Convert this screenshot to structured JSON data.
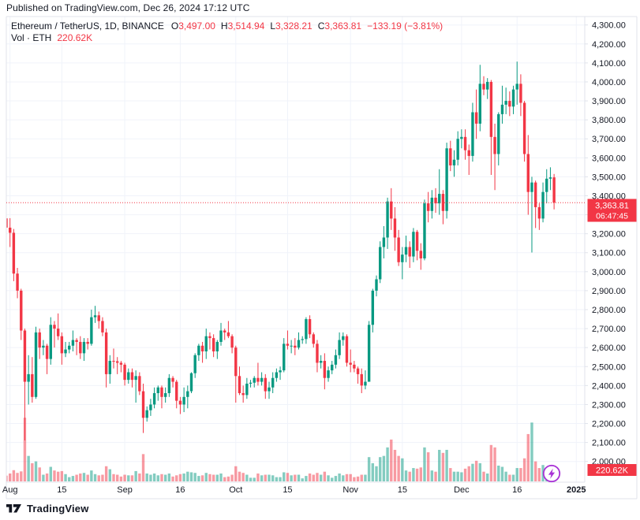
{
  "published_bar": {
    "text": "Published on TradingView.com, Dec 26, 2024 17:12 UTC"
  },
  "legend": {
    "title": "Ethereum / TetherUS, 1D, BINANCE",
    "ohlc": [
      {
        "label": "O",
        "value": "3,497.00"
      },
      {
        "label": "H",
        "value": "3,514.94"
      },
      {
        "label": "L",
        "value": "3,328.21"
      },
      {
        "label": "C",
        "value": "3,363.81"
      }
    ],
    "change": "−133.19 (−3.81%)",
    "volume_label": "Vol · ETH",
    "volume_value": "220.62K"
  },
  "price_axis": {
    "labels": [
      "4,300.00",
      "4,200.00",
      "4,100.00",
      "4,000.00",
      "3,900.00",
      "3,800.00",
      "3,700.00",
      "3,600.00",
      "3,500.00",
      "3,400.00",
      "3,300.00",
      "3,200.00",
      "3,100.00",
      "3,000.00",
      "2,900.00",
      "2,800.00",
      "2,700.00",
      "2,600.00",
      "2,500.00",
      "2,400.00",
      "2,300.00",
      "2,200.00",
      "2,100.00",
      "2,000.00"
    ]
  },
  "time_axis": {
    "labels": [
      {
        "text": "Aug",
        "index": 1,
        "bold": false
      },
      {
        "text": "15",
        "index": 15,
        "bold": false
      },
      {
        "text": "Sep",
        "index": 32,
        "bold": false
      },
      {
        "text": "16",
        "index": 47,
        "bold": false
      },
      {
        "text": "Oct",
        "index": 62,
        "bold": false
      },
      {
        "text": "15",
        "index": 76,
        "bold": false
      },
      {
        "text": "Nov",
        "index": 93,
        "bold": false
      },
      {
        "text": "15",
        "index": 107,
        "bold": false
      },
      {
        "text": "Dec",
        "index": 123,
        "bold": false
      },
      {
        "text": "16",
        "index": 138,
        "bold": false
      },
      {
        "text": "2025",
        "index": 154,
        "bold": true
      }
    ]
  },
  "price_label_badge": {
    "price": "3,363.81",
    "countdown": "06:47:45"
  },
  "volume_badge": {
    "value": "220.62K"
  },
  "footer": {
    "logo_text": "TradingView"
  },
  "colors": {
    "up": "#089981",
    "down": "#f23645",
    "vol_up": "rgba(8,153,129,0.5)",
    "vol_down": "rgba(242,54,69,0.5)",
    "grid": "#f0f3fa",
    "border": "#e0e3eb",
    "text": "#131722",
    "badge_bg": "#f23645",
    "badge_text": "#ffffff",
    "flash": "#a832d6"
  },
  "chart_data": {
    "type": "candlestick",
    "title": "Ethereum / TetherUS, 1D, BINANCE",
    "interval": "1D",
    "first_candle_date": "2024-07-31",
    "last_candle_date": "2024-12-26",
    "ylim": [
      2000,
      4300
    ],
    "grid": true,
    "current_price": 3363.81,
    "current_volume_k": 220.62,
    "candle_format": [
      "open",
      "high",
      "low",
      "close",
      "volume_thousand_eth"
    ],
    "candles": [
      [
        3281,
        3360,
        3200,
        3232,
        95
      ],
      [
        3232,
        3282,
        3130,
        3205,
        130
      ],
      [
        3205,
        3225,
        2950,
        2990,
        185
      ],
      [
        2990,
        3020,
        2860,
        2900,
        140
      ],
      [
        2900,
        2910,
        2640,
        2690,
        165
      ],
      [
        2690,
        2700,
        2111,
        2420,
        1050
      ],
      [
        2420,
        2560,
        2300,
        2460,
        420
      ],
      [
        2460,
        2550,
        2310,
        2340,
        300
      ],
      [
        2340,
        2710,
        2330,
        2680,
        330
      ],
      [
        2680,
        2700,
        2540,
        2600,
        230
      ],
      [
        2600,
        2640,
        2560,
        2610,
        110
      ],
      [
        2610,
        2620,
        2460,
        2540,
        130
      ],
      [
        2540,
        2760,
        2510,
        2720,
        240
      ],
      [
        2720,
        2740,
        2600,
        2700,
        180
      ],
      [
        2700,
        2780,
        2640,
        2660,
        160
      ],
      [
        2660,
        2680,
        2510,
        2570,
        170
      ],
      [
        2570,
        2630,
        2550,
        2590,
        120
      ],
      [
        2590,
        2630,
        2570,
        2610,
        70
      ],
      [
        2610,
        2690,
        2580,
        2640,
        90
      ],
      [
        2640,
        2650,
        2560,
        2630,
        110
      ],
      [
        2630,
        2660,
        2540,
        2570,
        130
      ],
      [
        2570,
        2650,
        2530,
        2630,
        140
      ],
      [
        2630,
        2650,
        2590,
        2620,
        110
      ],
      [
        2620,
        2800,
        2610,
        2760,
        180
      ],
      [
        2760,
        2820,
        2730,
        2770,
        120
      ],
      [
        2770,
        2790,
        2700,
        2740,
        100
      ],
      [
        2740,
        2760,
        2660,
        2680,
        110
      ],
      [
        2680,
        2700,
        2390,
        2460,
        250
      ],
      [
        2460,
        2560,
        2410,
        2530,
        200
      ],
      [
        2530,
        2595,
        2490,
        2528,
        120
      ],
      [
        2528,
        2550,
        2460,
        2520,
        110
      ],
      [
        2520,
        2530,
        2470,
        2510,
        80
      ],
      [
        2510,
        2520,
        2400,
        2430,
        110
      ],
      [
        2430,
        2490,
        2410,
        2470,
        100
      ],
      [
        2470,
        2490,
        2390,
        2430,
        100
      ],
      [
        2430,
        2480,
        2310,
        2450,
        170
      ],
      [
        2450,
        2470,
        2350,
        2370,
        130
      ],
      [
        2370,
        2410,
        2150,
        2230,
        450
      ],
      [
        2230,
        2290,
        2210,
        2270,
        130
      ],
      [
        2270,
        2330,
        2240,
        2300,
        110
      ],
      [
        2300,
        2390,
        2280,
        2360,
        130
      ],
      [
        2360,
        2400,
        2320,
        2390,
        100
      ],
      [
        2390,
        2400,
        2280,
        2340,
        120
      ],
      [
        2340,
        2390,
        2310,
        2360,
        110
      ],
      [
        2360,
        2460,
        2340,
        2440,
        130
      ],
      [
        2440,
        2450,
        2390,
        2420,
        80
      ],
      [
        2420,
        2430,
        2280,
        2320,
        100
      ],
      [
        2320,
        2340,
        2250,
        2300,
        120
      ],
      [
        2300,
        2390,
        2260,
        2340,
        130
      ],
      [
        2340,
        2400,
        2280,
        2370,
        160
      ],
      [
        2370,
        2470,
        2360,
        2465,
        150
      ],
      [
        2465,
        2570,
        2440,
        2560,
        140
      ],
      [
        2560,
        2620,
        2530,
        2610,
        90
      ],
      [
        2610,
        2630,
        2520,
        2580,
        100
      ],
      [
        2580,
        2700,
        2540,
        2660,
        140
      ],
      [
        2660,
        2680,
        2590,
        2650,
        120
      ],
      [
        2650,
        2670,
        2550,
        2580,
        110
      ],
      [
        2580,
        2640,
        2540,
        2630,
        110
      ],
      [
        2630,
        2730,
        2610,
        2690,
        130
      ],
      [
        2690,
        2700,
        2640,
        2680,
        70
      ],
      [
        2680,
        2740,
        2650,
        2660,
        80
      ],
      [
        2660,
        2670,
        2570,
        2600,
        110
      ],
      [
        2600,
        2610,
        2310,
        2450,
        250
      ],
      [
        2450,
        2500,
        2350,
        2360,
        160
      ],
      [
        2360,
        2400,
        2310,
        2350,
        140
      ],
      [
        2350,
        2440,
        2330,
        2410,
        110
      ],
      [
        2410,
        2430,
        2390,
        2415,
        60
      ],
      [
        2415,
        2450,
        2390,
        2440,
        60
      ],
      [
        2440,
        2520,
        2400,
        2420,
        130
      ],
      [
        2420,
        2470,
        2400,
        2440,
        100
      ],
      [
        2440,
        2460,
        2330,
        2370,
        110
      ],
      [
        2370,
        2420,
        2330,
        2390,
        110
      ],
      [
        2390,
        2470,
        2360,
        2440,
        100
      ],
      [
        2440,
        2490,
        2420,
        2470,
        70
      ],
      [
        2470,
        2500,
        2430,
        2480,
        70
      ],
      [
        2480,
        2650,
        2470,
        2620,
        150
      ],
      [
        2620,
        2690,
        2590,
        2610,
        140
      ],
      [
        2610,
        2640,
        2570,
        2610,
        100
      ],
      [
        2610,
        2650,
        2560,
        2600,
        110
      ],
      [
        2600,
        2680,
        2590,
        2640,
        110
      ],
      [
        2640,
        2660,
        2620,
        2645,
        50
      ],
      [
        2645,
        2760,
        2620,
        2750,
        90
      ],
      [
        2750,
        2770,
        2650,
        2670,
        130
      ],
      [
        2670,
        2680,
        2600,
        2620,
        110
      ],
      [
        2620,
        2640,
        2470,
        2520,
        140
      ],
      [
        2520,
        2560,
        2490,
        2530,
        110
      ],
      [
        2530,
        2570,
        2380,
        2440,
        160
      ],
      [
        2440,
        2500,
        2420,
        2480,
        100
      ],
      [
        2480,
        2530,
        2460,
        2510,
        60
      ],
      [
        2510,
        2590,
        2490,
        2560,
        90
      ],
      [
        2560,
        2680,
        2540,
        2640,
        130
      ],
      [
        2640,
        2680,
        2610,
        2660,
        100
      ],
      [
        2660,
        2670,
        2500,
        2520,
        120
      ],
      [
        2520,
        2590,
        2470,
        2510,
        120
      ],
      [
        2510,
        2530,
        2470,
        2490,
        70
      ],
      [
        2490,
        2500,
        2410,
        2460,
        80
      ],
      [
        2460,
        2490,
        2360,
        2400,
        110
      ],
      [
        2400,
        2480,
        2380,
        2420,
        110
      ],
      [
        2420,
        2740,
        2420,
        2720,
        400
      ],
      [
        2720,
        2910,
        2680,
        2900,
        300
      ],
      [
        2900,
        2980,
        2870,
        2960,
        250
      ],
      [
        2960,
        3160,
        2940,
        3130,
        400
      ],
      [
        3130,
        3240,
        3070,
        3180,
        420
      ],
      [
        3180,
        3390,
        3120,
        3370,
        560
      ],
      [
        3370,
        3440,
        3220,
        3280,
        690
      ],
      [
        3280,
        3340,
        3110,
        3180,
        520
      ],
      [
        3180,
        3220,
        3030,
        3050,
        420
      ],
      [
        3050,
        3130,
        2960,
        3090,
        380
      ],
      [
        3090,
        3190,
        3050,
        3130,
        180
      ],
      [
        3130,
        3160,
        3020,
        3080,
        160
      ],
      [
        3080,
        3230,
        3050,
        3210,
        220
      ],
      [
        3210,
        3220,
        3060,
        3110,
        210
      ],
      [
        3110,
        3150,
        3010,
        3070,
        230
      ],
      [
        3070,
        3380,
        3060,
        3360,
        560
      ],
      [
        3360,
        3420,
        3260,
        3320,
        480
      ],
      [
        3320,
        3430,
        3280,
        3390,
        180
      ],
      [
        3390,
        3440,
        3310,
        3360,
        160
      ],
      [
        3360,
        3540,
        3300,
        3410,
        520
      ],
      [
        3410,
        3430,
        3250,
        3320,
        470
      ],
      [
        3320,
        3680,
        3280,
        3650,
        520
      ],
      [
        3650,
        3690,
        3530,
        3560,
        220
      ],
      [
        3560,
        3640,
        3500,
        3590,
        160
      ],
      [
        3590,
        3740,
        3560,
        3700,
        160
      ],
      [
        3700,
        3750,
        3650,
        3710,
        150
      ],
      [
        3710,
        3750,
        3590,
        3640,
        210
      ],
      [
        3640,
        3670,
        3510,
        3610,
        250
      ],
      [
        3610,
        3890,
        3580,
        3840,
        290
      ],
      [
        3840,
        3960,
        3700,
        3780,
        340
      ],
      [
        3780,
        4090,
        3740,
        3990,
        300
      ],
      [
        3990,
        4030,
        3930,
        3960,
        160
      ],
      [
        3960,
        4020,
        3910,
        4000,
        130
      ],
      [
        4000,
        4010,
        3510,
        3710,
        600
      ],
      [
        3710,
        3780,
        3430,
        3620,
        560
      ],
      [
        3620,
        3840,
        3560,
        3830,
        260
      ],
      [
        3830,
        3980,
        3780,
        3880,
        240
      ],
      [
        3880,
        3970,
        3830,
        3900,
        160
      ],
      [
        3900,
        3950,
        3820,
        3870,
        110
      ],
      [
        3870,
        3980,
        3830,
        3960,
        110
      ],
      [
        3960,
        4107,
        3880,
        3990,
        220
      ],
      [
        3990,
        4040,
        3820,
        3890,
        220
      ],
      [
        3890,
        3900,
        3580,
        3620,
        380
      ],
      [
        3620,
        3720,
        3300,
        3420,
        780
      ],
      [
        3420,
        3500,
        3101,
        3470,
        970
      ],
      [
        3470,
        3480,
        3230,
        3340,
        330
      ],
      [
        3340,
        3360,
        3220,
        3280,
        220
      ],
      [
        3280,
        3470,
        3260,
        3420,
        270
      ],
      [
        3420,
        3540,
        3360,
        3490,
        180
      ],
      [
        3490,
        3550,
        3430,
        3497,
        150
      ],
      [
        3497,
        3514.94,
        3328.21,
        3363.81,
        220.62
      ]
    ]
  }
}
